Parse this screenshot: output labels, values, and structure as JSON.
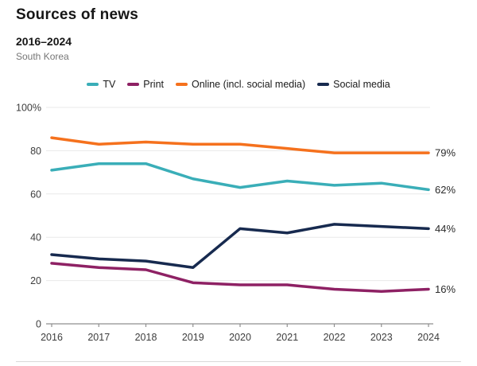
{
  "header": {
    "title": "Sources of news",
    "subtitle": "2016–2024",
    "region": "South Korea"
  },
  "colors": {
    "tv": "#3aaeb8",
    "print": "#8e2164",
    "online": "#f5711d",
    "social_media": "#172a4f",
    "gridline": "#e9e9e9",
    "axis": "#8f8f8f",
    "tick_label": "#3d3d3d",
    "end_label": "#2b2b2b",
    "divider": "#d9d9d9"
  },
  "chart_data": {
    "type": "line",
    "title": "Sources of news",
    "subtitle": "2016–2024",
    "region": "South Korea",
    "x": [
      2016,
      2017,
      2018,
      2019,
      2020,
      2021,
      2022,
      2023,
      2024
    ],
    "series": [
      {
        "name": "TV",
        "color": "#3aaeb8",
        "values": [
          71,
          74,
          74,
          67,
          63,
          66,
          64,
          65,
          62
        ],
        "end_label": "62%"
      },
      {
        "name": "Print",
        "color": "#8e2164",
        "values": [
          28,
          26,
          25,
          19,
          18,
          18,
          16,
          15,
          16
        ],
        "end_label": "16%"
      },
      {
        "name": "Online (incl. social media)",
        "color": "#f5711d",
        "values": [
          86,
          83,
          84,
          83,
          83,
          81,
          79,
          79,
          79
        ],
        "end_label": "79%"
      },
      {
        "name": "Social media",
        "color": "#172a4f",
        "values": [
          32,
          30,
          29,
          26,
          44,
          42,
          46,
          45,
          44
        ],
        "end_label": "44%"
      }
    ],
    "ylim": [
      0,
      100
    ],
    "yticks": [
      {
        "value": 0,
        "label": "0"
      },
      {
        "value": 20,
        "label": "20"
      },
      {
        "value": 40,
        "label": "40"
      },
      {
        "value": 60,
        "label": "60"
      },
      {
        "value": 80,
        "label": "80"
      },
      {
        "value": 100,
        "label": "100%"
      }
    ],
    "grid": "horizontal",
    "legend_position": "top"
  }
}
